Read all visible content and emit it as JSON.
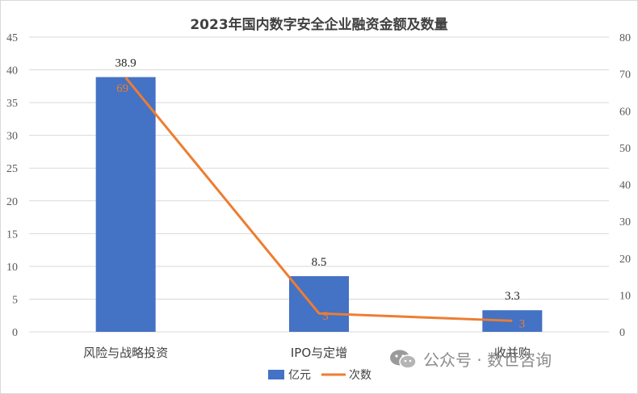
{
  "chart_data": {
    "type": "bar+line",
    "title": "2023年国内数字安全企业融资金额及数量",
    "categories": [
      "风险与战略投资",
      "IPO与定增",
      "收并购"
    ],
    "series": [
      {
        "name": "亿元",
        "type": "bar",
        "axis": "left",
        "values": [
          38.9,
          8.5,
          3.3
        ],
        "color": "#4472c4"
      },
      {
        "name": "次数",
        "type": "line",
        "axis": "right",
        "values": [
          69,
          5,
          3
        ],
        "color": "#ed7d31"
      }
    ],
    "left_axis": {
      "min": 0,
      "max": 45,
      "step": 5,
      "ticks": [
        "0",
        "5",
        "10",
        "15",
        "20",
        "25",
        "30",
        "35",
        "40",
        "45"
      ]
    },
    "right_axis": {
      "min": 0,
      "max": 80,
      "step": 10,
      "ticks": [
        "0",
        "10",
        "20",
        "30",
        "40",
        "50",
        "60",
        "70",
        "80"
      ]
    },
    "bar_labels": [
      "38.9",
      "8.5",
      "3.3"
    ],
    "line_labels": [
      "69",
      "5",
      "3"
    ],
    "grid": true,
    "legend_position": "bottom"
  },
  "watermark": {
    "text": "公众号 · 数世咨询",
    "icon": "wechat-icon"
  }
}
